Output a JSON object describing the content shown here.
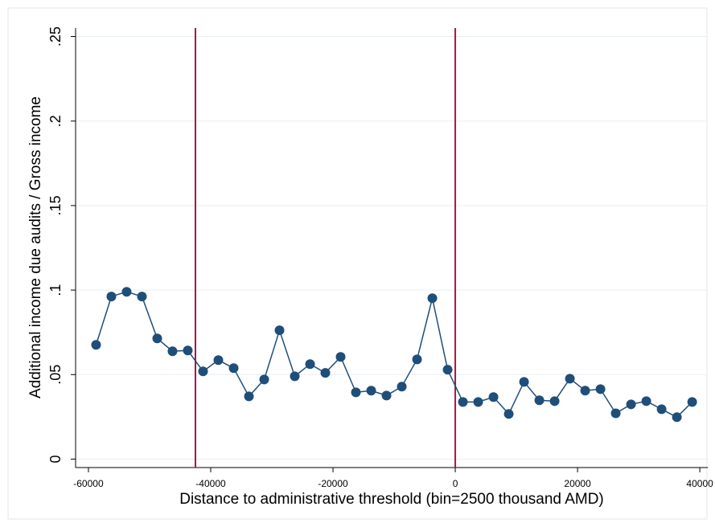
{
  "chart_data": {
    "type": "line",
    "x_label": "Distance to administrative threshold (bin=2500 thousand AMD)",
    "y_label": "Additional income due audits / Gross income",
    "x": [
      -58750,
      -56250,
      -53750,
      -51250,
      -48750,
      -46250,
      -43750,
      -41250,
      -38750,
      -36250,
      -33750,
      -31250,
      -28750,
      -26250,
      -23750,
      -21250,
      -18750,
      -16250,
      -13750,
      -11250,
      -8750,
      -6250,
      -3750,
      -1250,
      1250,
      3750,
      6250,
      8750,
      11250,
      13750,
      16250,
      18750,
      21250,
      23750,
      26250,
      28750,
      31250,
      33750,
      36250,
      38750
    ],
    "series": [
      {
        "color": "#1f4e79",
        "values": [
          0.0676,
          0.0962,
          0.099,
          0.0962,
          0.0714,
          0.0638,
          0.0643,
          0.0519,
          0.0586,
          0.0538,
          0.0371,
          0.0471,
          0.0762,
          0.049,
          0.0562,
          0.051,
          0.0605,
          0.0395,
          0.0405,
          0.0376,
          0.0429,
          0.059,
          0.0952,
          0.0529,
          0.0338,
          0.0338,
          0.0367,
          0.0267,
          0.0457,
          0.0348,
          0.0343,
          0.0476,
          0.0405,
          0.0414,
          0.0271,
          0.0324,
          0.0343,
          0.0295,
          0.0248,
          0.0338
        ]
      }
    ],
    "vlines": [
      -42500,
      0
    ],
    "vline_color": "#a8163f",
    "xlim": [
      -62100,
      41300
    ],
    "ylim": [
      -0.005,
      0.255
    ],
    "xticks": [
      -60000,
      -40000,
      -20000,
      0,
      20000,
      40000
    ],
    "yticks": [
      0,
      {
        "value": 0.05,
        "label": ".05"
      },
      {
        "value": 0.1,
        "label": ".1"
      },
      {
        "value": 0.15,
        "label": ".15"
      },
      {
        "value": 0.2,
        "label": ".2"
      },
      {
        "value": 0.25,
        "label": ".25"
      }
    ],
    "grid": true
  }
}
